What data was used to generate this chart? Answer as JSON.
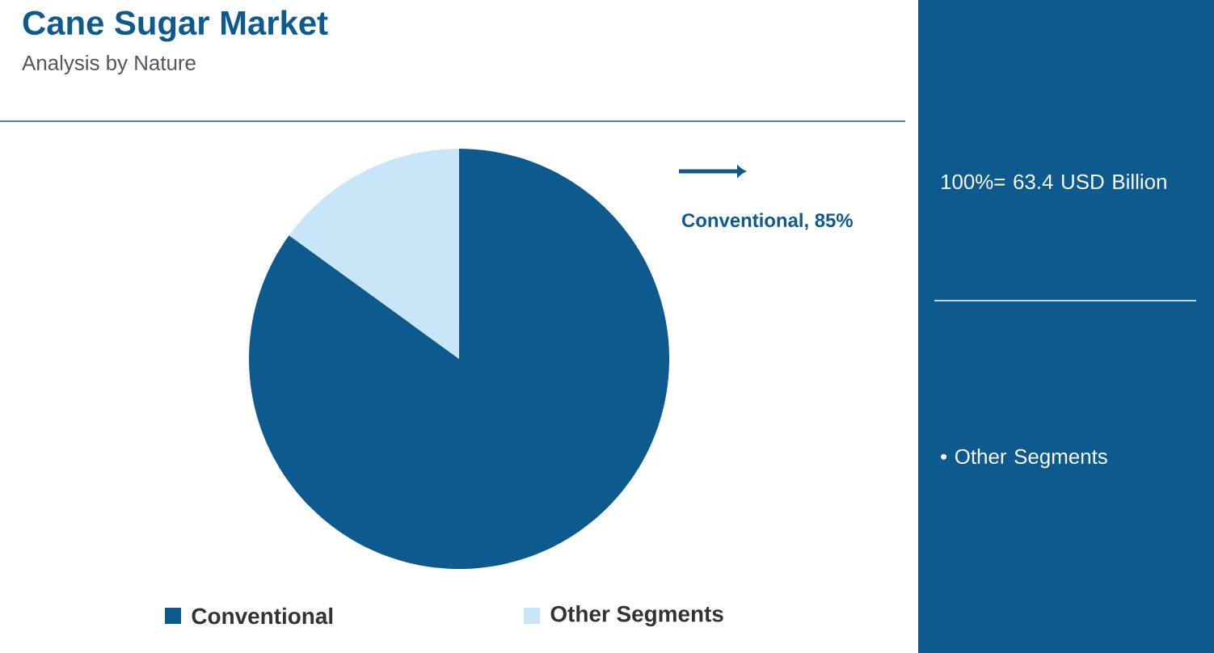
{
  "chart_data": {
    "type": "pie",
    "title": "Cane Sugar Market",
    "subtitle": "Analysis by Nature",
    "categories": [
      "Conventional",
      "Other Segments"
    ],
    "values": [
      85,
      15
    ],
    "colors": [
      "#0d5a8e",
      "#c8e6f7"
    ],
    "value_labels": [
      "Conventional, 85%",
      null
    ],
    "legend": "bottom",
    "annotations": [
      "100%= 63.4 USD Billion",
      "• Other Segments"
    ]
  }
}
